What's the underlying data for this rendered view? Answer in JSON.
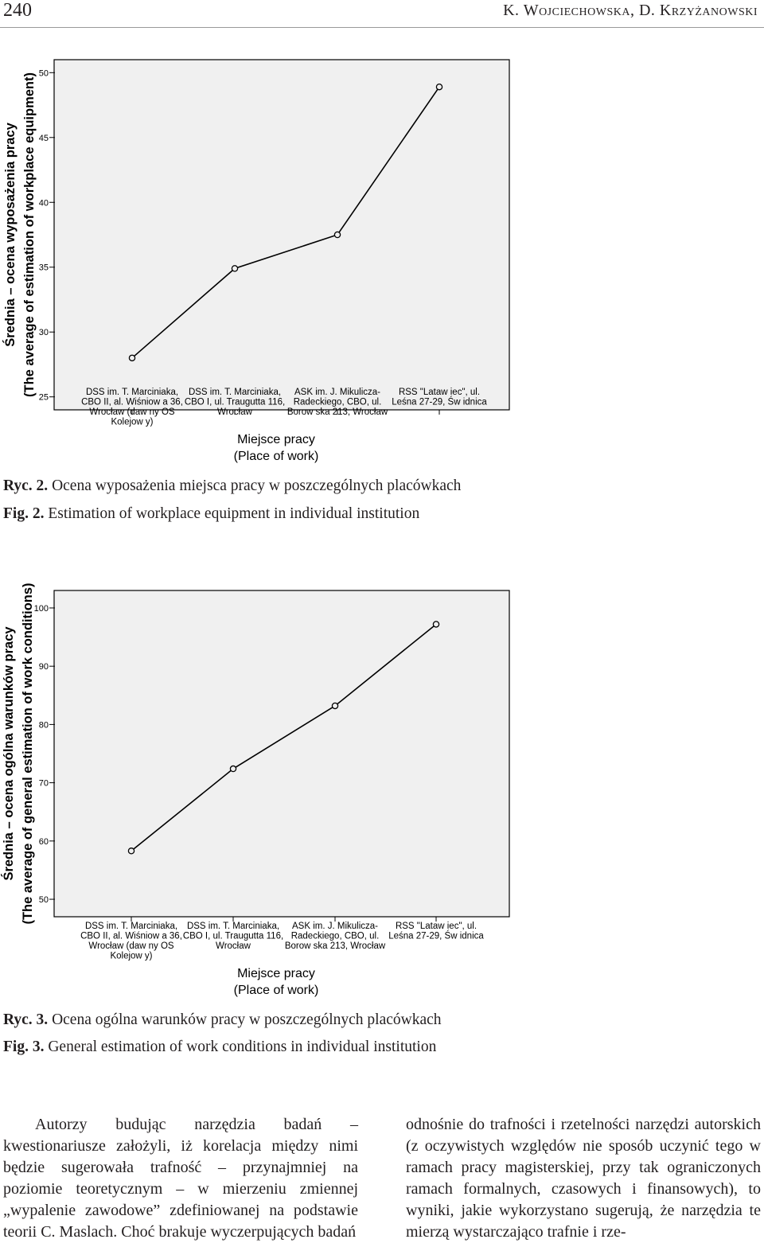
{
  "header": {
    "page_number": "240",
    "running_head": "K. Wojciechowska, D. Krzyżanowski"
  },
  "chart_data": [
    {
      "type": "line",
      "ylabel": [
        "Średnia – ocena wyposażenia pracy",
        "(The average of estimation of workplace equipment)"
      ],
      "xlabel": [
        "Miejsce pracy",
        "(Place of work)"
      ],
      "ylim": [
        24,
        51
      ],
      "yticks": [
        25,
        30,
        35,
        40,
        45,
        50
      ],
      "grid": false,
      "categories": [
        [
          "DSS im. T. Marciniaka,",
          "CBO II, al. Wiśniow a 36,",
          "Wrocław (daw ny OS",
          "Kolejow y)"
        ],
        [
          "DSS im. T. Marciniaka,",
          "CBO I, ul. Traugutta 116,",
          "Wrocław"
        ],
        [
          "ASK im. J. Mikulicza-",
          "Radeckiego, CBO, ul.",
          "Borow ska 213, Wrocław"
        ],
        [
          "RSS \"Lataw iec\", ul.",
          "Leśna 27-29, Św idnica"
        ]
      ],
      "series": [
        {
          "values": [
            28.0,
            34.9,
            37.5,
            48.9
          ]
        }
      ]
    },
    {
      "type": "line",
      "ylabel": [
        "Średnia – ocena ogólna warunków pracy",
        "(The average of general estimation of work conditions)"
      ],
      "xlabel": [
        "Miejsce pracy",
        "(Place of work)"
      ],
      "ylim": [
        47,
        103
      ],
      "yticks": [
        50,
        60,
        70,
        80,
        90,
        100
      ],
      "grid": false,
      "categories": [
        [
          "DSS im. T. Marciniaka,",
          "CBO II, al. Wiśniow a 36,",
          "Wrocław (daw ny OS",
          "Kolejow y)"
        ],
        [
          "DSS im. T. Marciniaka,",
          "CBO I, ul. Traugutta 116,",
          "Wrocław"
        ],
        [
          "ASK im. J. Mikulicza-",
          "Radeckiego, CBO, ul.",
          "Borow ska 213, Wrocław"
        ],
        [
          "RSS \"Lataw iec\", ul.",
          "Leśna 27-29, Św idnica"
        ]
      ],
      "series": [
        {
          "values": [
            58.3,
            72.4,
            83.2,
            97.2
          ]
        }
      ]
    }
  ],
  "captions": {
    "fig2_pl_label": "Ryc. 2.",
    "fig2_pl_text": " Ocena wyposażenia miejsca pracy w poszczególnych placówkach",
    "fig2_en_label": "Fig. 2.",
    "fig2_en_text": " Estimation of workplace equipment in individual institution",
    "fig3_pl_label": "Ryc. 3.",
    "fig3_pl_text": " Ocena ogólna warunków pracy w poszczególnych placówkach",
    "fig3_en_label": "Fig. 3.",
    "fig3_en_text": " General estimation of work conditions in individual institution"
  },
  "body": {
    "left_column": "Autorzy budując narzędzia badań – kwestionariusze założyli, iż korelacja między nimi będzie sugerowała trafność – przynajmniej na poziomie teoretycznym – w mierzeniu zmiennej „wypalenie zawodowe” zdefiniowanej na podstawie teorii C. Maslach. Choć brakuje wyczerpujących badań",
    "right_column": "odnośnie do trafności i rzetelności narzędzi autorskich (z oczywistych względów nie sposób uczynić tego w ramach pracy magisterskiej, przy tak ograniczonych ramach formalnych, czasowych i finansowych), to wyniki, jakie wykorzystano sugerują, że narzędzia te mierzą wystarczająco trafnie i rze-"
  }
}
